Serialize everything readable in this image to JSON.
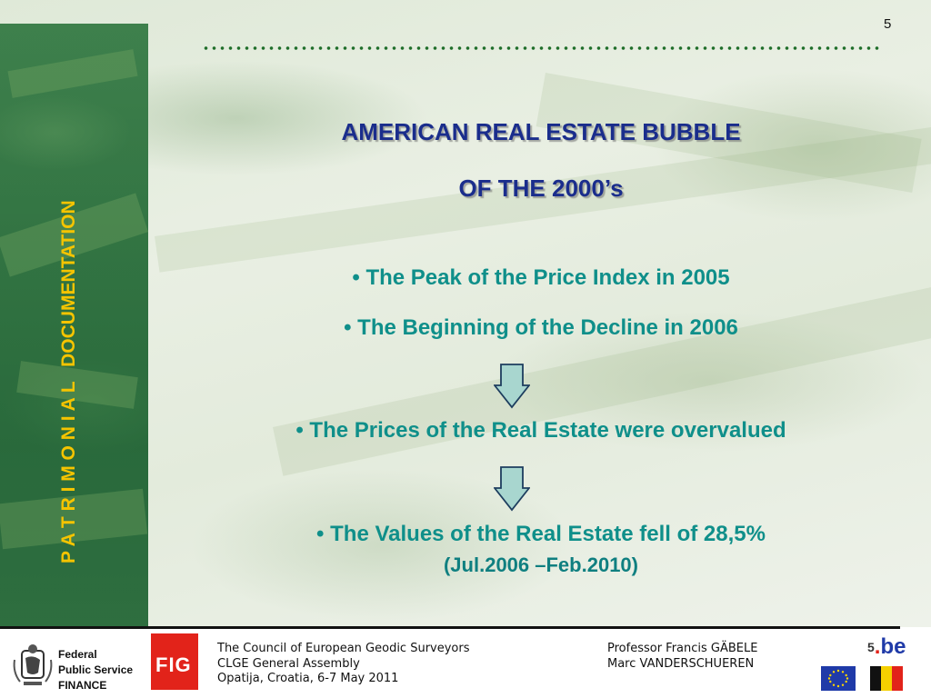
{
  "slide": {
    "page_number": "5",
    "vertical_title_prefix": "P A T R I M O N I A L",
    "vertical_title_suffix": "DOCUMENTATION",
    "title_line1": "AMERICAN REAL ESTATE BUBBLE",
    "title_line2": "OF THE 2000’s",
    "bullets": [
      "• The Peak of the Price Index in 2005",
      "• The Beginning of the Decline in 2006",
      "• The Prices of the Real Estate were overvalued",
      "• The Values of the Real Estate fell of 28,5%"
    ],
    "sub_note": "(Jul.2006 –Feb.2010)"
  },
  "footer": {
    "fps_line1": "Federal",
    "fps_line2": "Public Service",
    "fps_line3": "FINANCE",
    "fig_logo": "FIG",
    "org_line1": "The Council of European Geodic Surveyors",
    "org_line2": "CLGE General Assembly",
    "org_line3": "Opatija, Croatia, 6-7 May 2011",
    "author_line1": "Professor Francis GÄBELE",
    "author_line2": "Marc VANDERSCHUEREN",
    "be_logo_prefix": ".",
    "be_logo_text": "be",
    "be_logo_num": "5"
  },
  "colors": {
    "title": "#1a2d8c",
    "bullet": "#0f8f8a",
    "vertical_title": "#f5c400",
    "arrow_fill": "#a8d6cf"
  },
  "icons": [
    "down-arrow-icon",
    "belgian-lion-emblem-icon",
    "eu-flag-icon",
    "belgian-flag-icon"
  ]
}
